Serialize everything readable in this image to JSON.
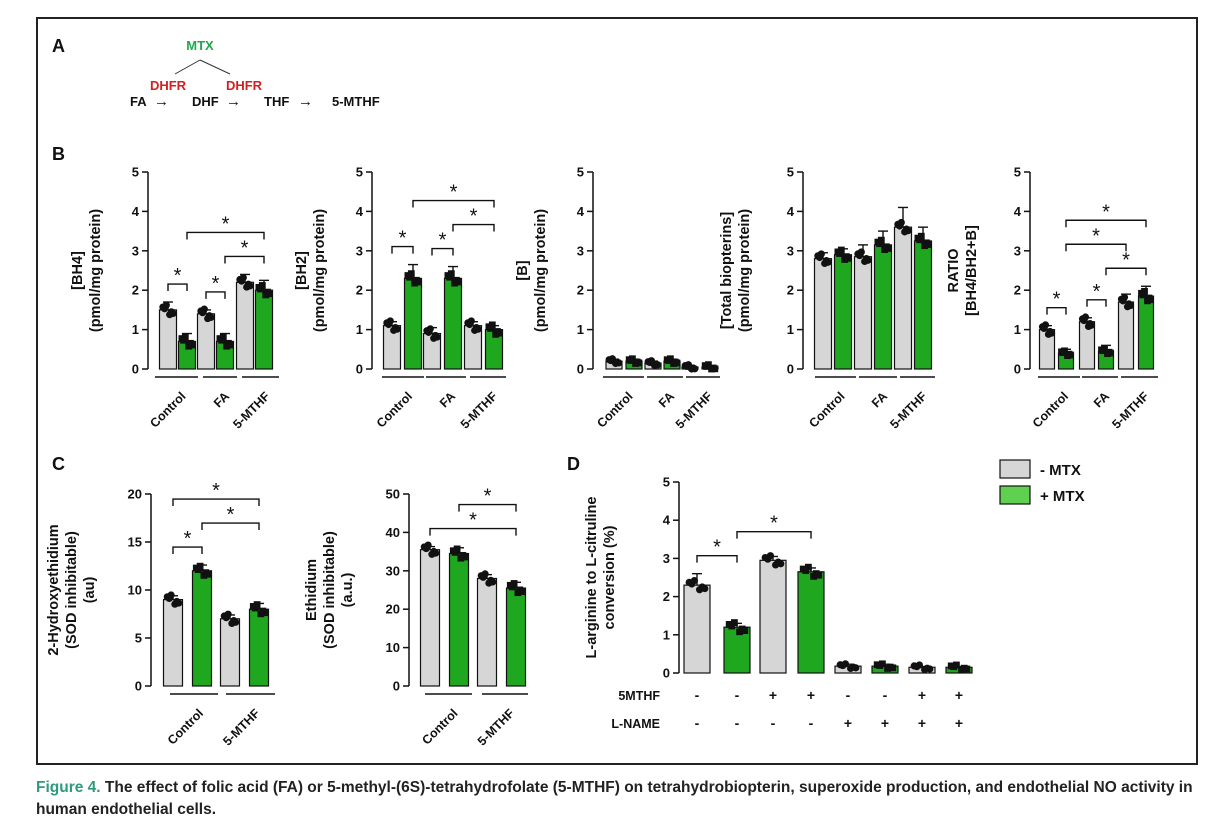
{
  "colors": {
    "gray": "#d6d6d6",
    "green": "#1fa81f",
    "mtx_text": "#1fa84a",
    "dhfr_text": "#d42020",
    "caption_label": "#2e9a7e"
  },
  "panels": {
    "a": {
      "label": "A",
      "inhibitor": "MTX",
      "enzyme": "DHFR",
      "pathway": [
        "FA",
        "DHF",
        "THF",
        "5-MTHF"
      ],
      "arrow": "→"
    },
    "b": {
      "label": "B"
    },
    "c": {
      "label": "C"
    },
    "d": {
      "label": "D"
    }
  },
  "legend": {
    "items": [
      {
        "label": "- MTX",
        "color": "#d6d6d6"
      },
      {
        "label": "+ MTX",
        "color": "#5fd04f"
      }
    ]
  },
  "caption": {
    "label": "Figure 4.",
    "text": "The effect of folic acid (FA) or 5-methyl-(6S)-tetrahydrofolate (5-MTHF) on tetrahydrobiopterin, superoxide production, and endothelial NO activity in human endothelial cells."
  },
  "chart_data": [
    {
      "id": "B1",
      "type": "bar",
      "ylabel": [
        "[BH4]",
        "(pmol/mg protein)"
      ],
      "ylim": [
        0,
        5
      ],
      "yticks": [
        "0",
        "1",
        "2",
        "3",
        "4",
        "5"
      ],
      "groups": [
        "Control",
        "FA",
        "5-MTHF"
      ],
      "series": [
        {
          "values": [
            1.5,
            0.7,
            1.4,
            0.7,
            2.2,
            2.0
          ],
          "errors": [
            0.2,
            0.2,
            0.1,
            0.2,
            0.2,
            0.25
          ]
        }
      ],
      "significance": [
        {
          "bars": [
            0,
            1
          ],
          "label": "*"
        },
        {
          "bars": [
            2,
            3
          ],
          "label": "*"
        },
        {
          "bars": [
            3,
            5
          ],
          "label": "*"
        },
        {
          "bars": [
            1,
            5
          ],
          "label": "*"
        }
      ]
    },
    {
      "id": "B2",
      "type": "bar",
      "ylabel": [
        "[BH2]",
        "(pmol/mg protein)"
      ],
      "ylim": [
        0,
        5
      ],
      "yticks": [
        "0",
        "1",
        "2",
        "3",
        "4",
        "5"
      ],
      "groups": [
        "Control",
        "FA",
        "5-MTHF"
      ],
      "series": [
        {
          "values": [
            1.1,
            2.3,
            0.9,
            2.3,
            1.1,
            1.0
          ],
          "errors": [
            0.1,
            0.35,
            0.15,
            0.3,
            0.1,
            0.1
          ]
        }
      ],
      "significance": [
        {
          "bars": [
            0,
            1
          ],
          "label": "*"
        },
        {
          "bars": [
            2,
            3
          ],
          "label": "*"
        },
        {
          "bars": [
            3,
            5
          ],
          "label": "*"
        },
        {
          "bars": [
            1,
            5
          ],
          "label": "*"
        }
      ]
    },
    {
      "id": "B3",
      "type": "bar",
      "ylabel": [
        "[B]",
        "(pmol/mg protein)"
      ],
      "ylim": [
        0,
        5
      ],
      "yticks": [
        "0",
        "1",
        "2",
        "3",
        "4",
        "5"
      ],
      "groups": [
        "Control",
        "FA",
        "5-MTHF"
      ],
      "series": [
        {
          "values": [
            0.2,
            0.2,
            0.15,
            0.2,
            0.05,
            0.05
          ],
          "errors": [
            0.05,
            0.05,
            0.05,
            0.05,
            0.02,
            0.02
          ]
        }
      ],
      "significance": []
    },
    {
      "id": "B4",
      "type": "bar",
      "ylabel": [
        "[Total biopterins]",
        "(pmol/mg protein)"
      ],
      "ylim": [
        0,
        5
      ],
      "yticks": [
        "0",
        "1",
        "2",
        "3",
        "4",
        "5"
      ],
      "groups": [
        "Control",
        "FA",
        "5-MTHF"
      ],
      "series": [
        {
          "values": [
            2.8,
            2.9,
            2.85,
            3.15,
            3.6,
            3.25
          ],
          "errors": [
            0.15,
            0.15,
            0.3,
            0.35,
            0.5,
            0.35
          ]
        }
      ],
      "significance": []
    },
    {
      "id": "B5",
      "type": "bar",
      "ylabel": [
        "RATIO",
        "[BH4/BH2+B]"
      ],
      "ylim": [
        0,
        5
      ],
      "yticks": [
        "0",
        "1",
        "2",
        "3",
        "4",
        "5"
      ],
      "groups": [
        "Control",
        "FA",
        "5-MTHF"
      ],
      "series": [
        {
          "values": [
            1.0,
            0.4,
            1.2,
            0.45,
            1.7,
            1.85
          ],
          "errors": [
            0.1,
            0.1,
            0.1,
            0.15,
            0.2,
            0.25
          ]
        }
      ],
      "significance": [
        {
          "bars": [
            0,
            1
          ],
          "label": "*"
        },
        {
          "bars": [
            2,
            3
          ],
          "label": "*"
        },
        {
          "bars": [
            3,
            5
          ],
          "label": "*"
        },
        {
          "bars": [
            1,
            4
          ],
          "label": "*"
        },
        {
          "bars": [
            1,
            5
          ],
          "label": "*"
        }
      ]
    },
    {
      "id": "C1",
      "type": "bar",
      "ylabel": [
        "2-Hydroxyethidium",
        "(SOD inhibitable)",
        "(au)"
      ],
      "ylim": [
        0,
        20
      ],
      "yticks": [
        "0",
        "5",
        "10",
        "15",
        "20"
      ],
      "groups": [
        "Control",
        "5-MTHF"
      ],
      "series": [
        {
          "values": [
            9.0,
            12.0,
            7.0,
            8.0
          ],
          "errors": [
            0.4,
            0.6,
            0.4,
            0.6
          ]
        }
      ],
      "significance": [
        {
          "bars": [
            0,
            1
          ],
          "label": "*"
        },
        {
          "bars": [
            1,
            3
          ],
          "label": "*"
        },
        {
          "bars": [
            0,
            3
          ],
          "label": "*"
        }
      ]
    },
    {
      "id": "C2",
      "type": "bar",
      "ylabel": [
        "Ethidium",
        "(SOD inhibitable)",
        "(a.u.)"
      ],
      "ylim": [
        0,
        50
      ],
      "yticks": [
        "0",
        "10",
        "20",
        "30",
        "40",
        "50"
      ],
      "groups": [
        "Control",
        "5-MTHF"
      ],
      "series": [
        {
          "values": [
            35.5,
            34.5,
            28.0,
            25.5
          ],
          "errors": [
            0.8,
            1.5,
            1.0,
            1.5
          ]
        }
      ],
      "significance": [
        {
          "bars": [
            0,
            3
          ],
          "label": "*"
        },
        {
          "bars": [
            1,
            3
          ],
          "label": "*"
        }
      ]
    },
    {
      "id": "D",
      "type": "bar",
      "ylabel": [
        "L-arginine to L-citruline",
        "conversion (%)"
      ],
      "ylim": [
        0,
        5
      ],
      "yticks": [
        "0",
        "1",
        "2",
        "3",
        "4",
        "5"
      ],
      "row_labels": [
        "5MTHF",
        "L-NAME"
      ],
      "rows": [
        [
          "-",
          "-",
          "+",
          "+",
          "-",
          "-",
          "+",
          "+"
        ],
        [
          "-",
          "-",
          "-",
          "-",
          "+",
          "+",
          "+",
          "+"
        ]
      ],
      "series": [
        {
          "values": [
            2.3,
            1.2,
            2.95,
            2.65,
            0.18,
            0.18,
            0.15,
            0.15
          ],
          "errors": [
            0.3,
            0.1,
            0.1,
            0.1,
            0.05,
            0.05,
            0.02,
            0.02
          ]
        }
      ],
      "significance": [
        {
          "bars": [
            0,
            1
          ],
          "label": "*"
        },
        {
          "bars": [
            1,
            3
          ],
          "label": "*"
        }
      ]
    }
  ]
}
